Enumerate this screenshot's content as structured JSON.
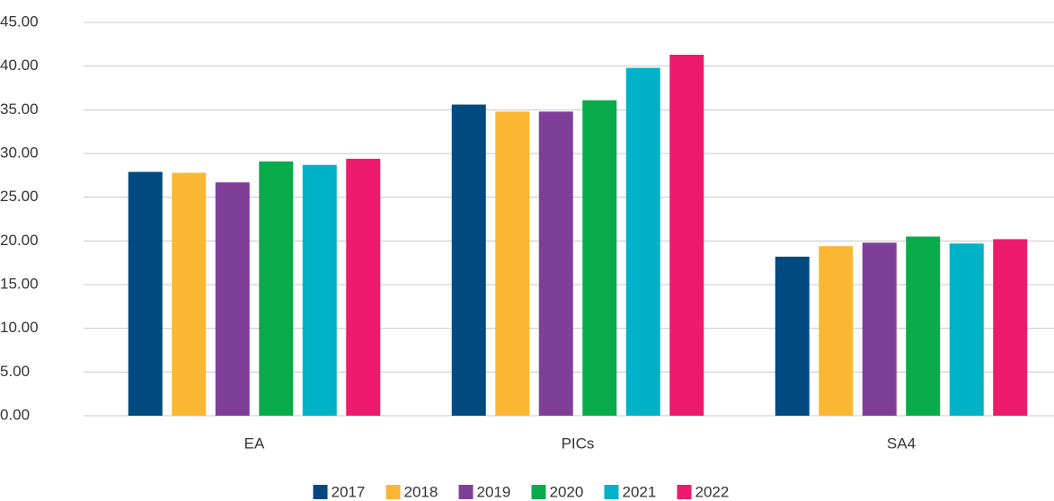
{
  "chart_data": {
    "type": "bar",
    "categories": [
      "EA",
      "PICs",
      "SA4"
    ],
    "series": [
      {
        "name": "2017",
        "color": "#004a80",
        "values": [
          27.9,
          35.6,
          18.2
        ]
      },
      {
        "name": "2018",
        "color": "#fbb734",
        "values": [
          27.8,
          34.8,
          19.4
        ]
      },
      {
        "name": "2019",
        "color": "#7f3f98",
        "values": [
          26.7,
          34.8,
          19.8
        ]
      },
      {
        "name": "2020",
        "color": "#0aab4b",
        "values": [
          29.1,
          36.1,
          20.5
        ]
      },
      {
        "name": "2021",
        "color": "#00b2c8",
        "values": [
          28.7,
          39.8,
          19.7
        ]
      },
      {
        "name": "2022",
        "color": "#ee1a6e",
        "values": [
          29.4,
          41.3,
          20.2
        ]
      }
    ],
    "ylim": [
      0,
      45
    ],
    "yticks": [
      {
        "value": 0,
        "label": "0.00"
      },
      {
        "value": 5,
        "label": "5.00"
      },
      {
        "value": 10,
        "label": "10.00"
      },
      {
        "value": 15,
        "label": "15.00"
      },
      {
        "value": 20,
        "label": "20.00"
      },
      {
        "value": 25,
        "label": "25.00"
      },
      {
        "value": 30,
        "label": "30.00"
      },
      {
        "value": 35,
        "label": "35.00"
      },
      {
        "value": 40,
        "label": "40.00"
      },
      {
        "value": 45,
        "label": "45.00"
      }
    ],
    "grid": true,
    "legend": "bottom"
  }
}
